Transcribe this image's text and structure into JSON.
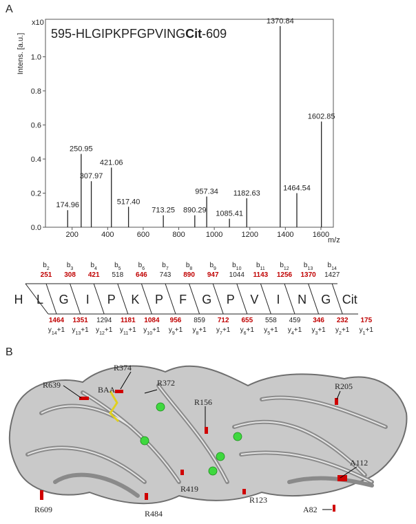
{
  "panels": [
    "A",
    "B"
  ],
  "chart_data": {
    "type": "stem",
    "title": [
      "595-HLGIPKPFGPVING",
      "Cit",
      "-609"
    ],
    "y_label": "Intens. [a.u.]",
    "y_multiplier": "x10",
    "x_label": "m/z",
    "x": [
      174.96,
      250.95,
      307.97,
      421.06,
      517.4,
      713.25,
      890.29,
      957.34,
      1085.41,
      1182.63,
      1370.84,
      1464.54,
      1602.85
    ],
    "x_labels": [
      "174.96",
      "250.95",
      "307.97",
      "421.06",
      "517.40",
      "713.25",
      "890.29",
      "957.34",
      "1085.41",
      "1182.63",
      "1370.84",
      "1464.54",
      "1602.85"
    ],
    "values": [
      0.1,
      0.43,
      0.27,
      0.35,
      0.12,
      0.07,
      0.07,
      0.18,
      0.05,
      0.17,
      1.18,
      0.2,
      0.62
    ],
    "color": "#222222",
    "xlim": [
      50,
      1670
    ],
    "xticks": [
      200,
      400,
      600,
      800,
      1000,
      1200,
      1400,
      1600
    ],
    "ylim": [
      0,
      1.22
    ],
    "yticks": [
      {
        "value": 0,
        "label": "0.0"
      },
      0.2,
      0.4,
      0.6,
      0.8,
      {
        "value": 1,
        "label": "1.0"
      }
    ]
  },
  "fragment_ladder": {
    "observed_color": "#c00000",
    "sequence": [
      "H",
      "L",
      "G",
      "I",
      "P",
      "K",
      "P",
      "F",
      "G",
      "P",
      "V",
      "I",
      "N",
      "G",
      "Cit"
    ],
    "b_ions": [
      {
        "name": "b",
        "sub": "2",
        "mz": 251,
        "observed": true
      },
      {
        "name": "b",
        "sub": "3",
        "mz": 308,
        "observed": true
      },
      {
        "name": "b",
        "sub": "4",
        "mz": 421,
        "observed": true
      },
      {
        "name": "b",
        "sub": "5",
        "mz": 518,
        "observed": false
      },
      {
        "name": "b",
        "sub": "6",
        "mz": 646,
        "observed": true
      },
      {
        "name": "b",
        "sub": "7",
        "mz": 743,
        "observed": false
      },
      {
        "name": "b",
        "sub": "8",
        "mz": 890,
        "observed": true
      },
      {
        "name": "b",
        "sub": "9",
        "mz": 947,
        "observed": true
      },
      {
        "name": "b",
        "sub": "10",
        "mz": 1044,
        "observed": false
      },
      {
        "name": "b",
        "sub": "11",
        "mz": 1143,
        "observed": true
      },
      {
        "name": "b",
        "sub": "12",
        "mz": 1256,
        "observed": true
      },
      {
        "name": "b",
        "sub": "13",
        "mz": 1370,
        "observed": true
      },
      {
        "name": "b",
        "sub": "14",
        "mz": 1427,
        "observed": false
      }
    ],
    "y_ions": [
      {
        "name": "y",
        "sub": "14",
        "suffix": "+1",
        "mz": 1464,
        "observed": true
      },
      {
        "name": "y",
        "sub": "13",
        "suffix": "+1",
        "mz": 1351,
        "observed": true
      },
      {
        "name": "y",
        "sub": "12",
        "suffix": "+1",
        "mz": 1294,
        "observed": false
      },
      {
        "name": "y",
        "sub": "11",
        "suffix": "+1",
        "mz": 1181,
        "observed": true
      },
      {
        "name": "y",
        "sub": "10",
        "suffix": "+1",
        "mz": 1084,
        "observed": true
      },
      {
        "name": "y",
        "sub": "9",
        "suffix": "+1",
        "mz": 956,
        "observed": true
      },
      {
        "name": "y",
        "sub": "8",
        "suffix": "+1",
        "mz": 859,
        "observed": false
      },
      {
        "name": "y",
        "sub": "7",
        "suffix": "+1",
        "mz": 712,
        "observed": true
      },
      {
        "name": "y",
        "sub": "6",
        "suffix": "+1",
        "mz": 655,
        "observed": true
      },
      {
        "name": "y",
        "sub": "5",
        "suffix": "+1",
        "mz": 558,
        "observed": false
      },
      {
        "name": "y",
        "sub": "4",
        "suffix": "+1",
        "mz": 459,
        "observed": false
      },
      {
        "name": "y",
        "sub": "3",
        "suffix": "+1",
        "mz": 346,
        "observed": true
      },
      {
        "name": "y",
        "sub": "2",
        "suffix": "+1",
        "mz": 232,
        "observed": true
      },
      {
        "name": "y",
        "sub": "1",
        "suffix": "+1",
        "mz": 175,
        "observed": true
      }
    ]
  },
  "structure": {
    "labels": [
      "R639",
      "BAA",
      "R374",
      "R372",
      "R156",
      "R205",
      "A112",
      "R609",
      "R419",
      "R123",
      "R484",
      "A82"
    ]
  }
}
